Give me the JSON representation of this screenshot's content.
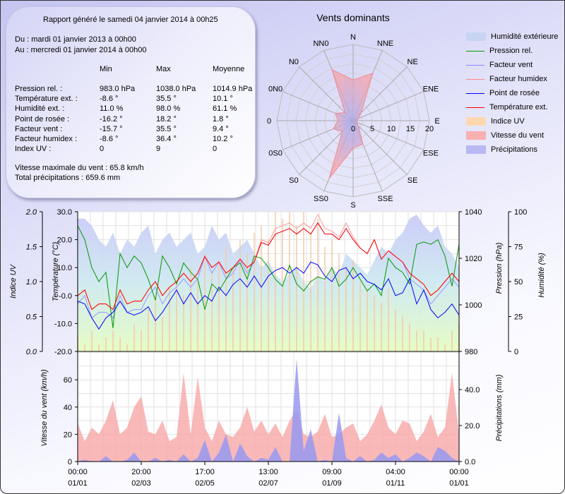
{
  "report": {
    "generated": "Rapport généré le samedi 04 janvier 2014 à 00h25",
    "from": "Du : mardi 01 janvier 2013 à 00h00",
    "to": "Au : mercredi 01 janvier 2014 à 00h00",
    "columns": [
      "Min",
      "Max",
      "Moyenne"
    ],
    "rows": [
      {
        "label": "Pression rel. :",
        "min": "983.0 hPa",
        "max": "1038.0 hPa",
        "avg": "1014.9 hPa"
      },
      {
        "label": "Température ext. :",
        "min": "-8.6 °",
        "max": "35.5 °",
        "avg": "10.1 °"
      },
      {
        "label": "Humidité ext. :",
        "min": "11.0 %",
        "max": "98.0 %",
        "avg": "61.1 %"
      },
      {
        "label": "Point de rosée :",
        "min": "-16.2 °",
        "max": "18.2 °",
        "avg": "1.8 °"
      },
      {
        "label": "Facteur vent :",
        "min": "-15.7 °",
        "max": "35.5 °",
        "avg": "9.4 °"
      },
      {
        "label": "Facteur humidex :",
        "min": "-8.6 °",
        "max": "36.4 °",
        "avg": "10.2 °"
      },
      {
        "label": "Index UV :",
        "min": "0",
        "max": "9",
        "avg": "0"
      }
    ],
    "max_wind": "Vitesse maximale du vent : 65.8 km/h",
    "total_precip": "Total précipitations : 659.6 mm"
  },
  "legend": [
    {
      "label": "Humidité extérieure",
      "kind": "fill",
      "color": "#c8d4f4"
    },
    {
      "label": "Pression rel.",
      "kind": "line",
      "color": "#009900"
    },
    {
      "label": "Facteur vent",
      "kind": "line",
      "color": "#8888ff"
    },
    {
      "label": "Facteur humidex",
      "kind": "line",
      "color": "#ff8888"
    },
    {
      "label": "Point de rosée",
      "kind": "line",
      "color": "#0000ff"
    },
    {
      "label": "Température ext.",
      "kind": "line",
      "color": "#ff0000"
    },
    {
      "label": "Indice UV",
      "kind": "fill",
      "color": "#fcd8b0"
    },
    {
      "label": "Vitesse du vent",
      "kind": "fill",
      "color": "#f8b0b0"
    },
    {
      "label": "Précipitations",
      "kind": "fill",
      "color": "#b8b8f4"
    }
  ],
  "chart_data": [
    {
      "type": "radar",
      "title": "Vents dominants",
      "directions": [
        "N",
        "NNE",
        "NE",
        "ENE",
        "E",
        "ESE",
        "SE",
        "SSE",
        "S",
        "SS0",
        "S0",
        "0S0",
        "0",
        "0N0",
        "N0",
        "NN0"
      ],
      "values": [
        10.7,
        13.5,
        3,
        1.5,
        1,
        1,
        2,
        6.7,
        7.2,
        16.4,
        4,
        5.6,
        4,
        5,
        3,
        14.5
      ],
      "rlim": [
        0,
        20
      ],
      "radial_ticks": [
        "0",
        "5",
        "10",
        "15",
        "20"
      ],
      "fill_color": "#f4a0a8"
    },
    {
      "type": "line",
      "x_ticks": [
        [
          "00:00",
          "01/01"
        ],
        [
          "20:00",
          "02/03"
        ],
        [
          "17:00",
          "02/05"
        ],
        [
          "13:00",
          "02/07"
        ],
        [
          "09:00",
          "01/09"
        ],
        [
          "04:00",
          "01/11"
        ],
        [
          "00:00",
          "01/01"
        ]
      ],
      "axes": {
        "uv": {
          "label": "Indice UV",
          "ylim": [
            0,
            2
          ],
          "ticks": [
            "0.0",
            "0.5",
            "1.0",
            "1.5",
            "2.0"
          ]
        },
        "temperature": {
          "label": "Température (°C)",
          "ylim": [
            -20,
            30
          ],
          "ticks": [
            "-20.0",
            "-10.0",
            "-0.0",
            "10.0",
            "20.0",
            "30.0"
          ]
        },
        "pressure": {
          "label": "Pression (hPa)",
          "ylim": [
            980,
            1040
          ],
          "ticks": [
            "980",
            "1000",
            "1020",
            "1040"
          ]
        },
        "humidity": {
          "label": "Humidité (%)",
          "ylim": [
            0,
            100
          ],
          "ticks": [
            "0",
            "25",
            "50",
            "75",
            "100"
          ]
        }
      },
      "series": {
        "humidity": [
          95,
          95,
          90,
          80,
          75,
          85,
          70,
          80,
          75,
          85,
          90,
          70,
          80,
          85,
          75,
          80,
          85,
          70,
          75,
          90,
          80,
          85,
          70,
          75,
          80,
          70,
          60,
          65,
          55,
          50,
          55,
          60,
          50,
          45,
          55,
          50,
          60,
          55,
          70,
          65,
          60,
          55,
          65,
          75,
          70,
          80,
          85,
          95,
          98,
          90,
          85,
          90,
          75,
          70,
          60
        ],
        "uv": [
          0.2,
          0.1,
          0.3,
          0.1,
          0.2,
          0.3,
          0.2,
          0.1,
          0.4,
          0.3,
          0.6,
          0.8,
          0.5,
          0.9,
          1.0,
          0.8,
          1.2,
          1.0,
          1.4,
          1.1,
          1.3,
          1.5,
          1.2,
          1.6,
          1.4,
          1.7,
          1.8,
          1.6,
          2.0,
          1.9,
          2.0,
          1.8,
          2.0,
          1.7,
          1.9,
          1.5,
          1.6,
          1.4,
          1.2,
          1.3,
          1.0,
          0.9,
          0.8,
          0.7,
          0.9,
          0.6,
          0.5,
          0.4,
          0.3,
          0.3,
          0.2,
          0.2,
          0.1,
          0.3,
          0.4
        ],
        "windchill": [
          -3,
          0,
          -8,
          -6,
          -6,
          -8,
          0,
          -6,
          -5,
          -5,
          0,
          3,
          -3,
          1,
          3,
          6,
          3,
          6,
          14,
          8,
          12,
          6,
          8,
          13,
          8,
          12,
          19,
          18,
          22,
          23,
          24,
          22,
          24,
          22,
          26,
          22,
          22,
          20,
          24,
          20,
          17,
          15,
          20,
          13,
          16,
          14,
          12,
          6,
          4,
          2,
          -3,
          0,
          3,
          6,
          3
        ],
        "humidex": [
          0,
          2,
          -5,
          -3,
          -3,
          -5,
          2,
          -3,
          -2,
          -2,
          2,
          5,
          0,
          3,
          5,
          8,
          5,
          8,
          14,
          10,
          12,
          8,
          10,
          13,
          10,
          12,
          20,
          19,
          24,
          25,
          26,
          24,
          26,
          24,
          29,
          24,
          23,
          21,
          26,
          21,
          17,
          15,
          20,
          13,
          16,
          14,
          12,
          8,
          6,
          4,
          0,
          2,
          5,
          8,
          5
        ],
        "pressure": [
          1034,
          1028,
          1016,
          1010,
          1014,
          990,
          1022,
          1016,
          1021,
          1018,
          1011,
          1002,
          1021,
          1016,
          1009,
          1018,
          1014,
          1011,
          998,
          1009,
          1006,
          1011,
          1016,
          1018,
          1011,
          1021,
          1020,
          1016,
          1011,
          1008,
          1017,
          1009,
          1006,
          1010,
          1012,
          1011,
          1016,
          1008,
          1011,
          1016,
          1011,
          1006,
          1009,
          1004,
          1020,
          1016,
          1014,
          1009,
          1026,
          1027,
          1026,
          1028,
          1021,
          1008,
          1026
        ],
        "dewpoint": [
          -2,
          -3,
          -8,
          -12,
          -8,
          -6,
          -2,
          -6,
          -7,
          -6,
          -4,
          -9,
          -6,
          -2,
          2,
          -3,
          1,
          -3,
          0,
          -2,
          3,
          0,
          4,
          6,
          3,
          7,
          3,
          7,
          9,
          10,
          8,
          10,
          8,
          12,
          11,
          7,
          5,
          9,
          10,
          6,
          8,
          5,
          4,
          2,
          6,
          0,
          1,
          6,
          -3,
          2,
          -5,
          -8,
          -6,
          -3,
          -7
        ],
        "temperature": [
          0,
          2,
          -5,
          -3,
          -3,
          -5,
          2,
          -3,
          -2,
          -2,
          2,
          5,
          0,
          3,
          5,
          8,
          5,
          8,
          14,
          10,
          12,
          8,
          10,
          13,
          10,
          12,
          19,
          18,
          22,
          23,
          24,
          22,
          24,
          22,
          26,
          22,
          22,
          20,
          24,
          20,
          17,
          15,
          20,
          13,
          16,
          14,
          12,
          8,
          6,
          4,
          0,
          2,
          5,
          8,
          5
        ]
      }
    },
    {
      "type": "area",
      "axes": {
        "wind": {
          "label": "Vitesse du vent (km/h)",
          "ylim": [
            0,
            80
          ],
          "ticks": [
            "0",
            "20",
            "40",
            "60"
          ]
        },
        "precip": {
          "label": "Précipitations (mm)",
          "ylim": [
            0,
            61
          ],
          "ticks": [
            "0.0",
            "20.0",
            "40.0"
          ]
        }
      },
      "series": {
        "wind": [
          28,
          15,
          25,
          20,
          30,
          45,
          20,
          25,
          40,
          48,
          22,
          20,
          30,
          15,
          18,
          65,
          20,
          62,
          25,
          15,
          30,
          20,
          18,
          25,
          40,
          22,
          30,
          20,
          28,
          18,
          30,
          38,
          20,
          18,
          22,
          35,
          18,
          20,
          25,
          28,
          15,
          20,
          30,
          42,
          25,
          20,
          30,
          28,
          15,
          22,
          35,
          18,
          25,
          65,
          20
        ],
        "precip": [
          0,
          1,
          0,
          0,
          3,
          0,
          0,
          1,
          5,
          0,
          0,
          2,
          0,
          1,
          0,
          4,
          0,
          2,
          12,
          0,
          5,
          15,
          0,
          10,
          3,
          0,
          2,
          1,
          8,
          0,
          0,
          57,
          6,
          18,
          0,
          1,
          0,
          27,
          2,
          0,
          3,
          0,
          1,
          5,
          2,
          4,
          0,
          2,
          5,
          3,
          0,
          8,
          6,
          2,
          0
        ]
      }
    }
  ]
}
